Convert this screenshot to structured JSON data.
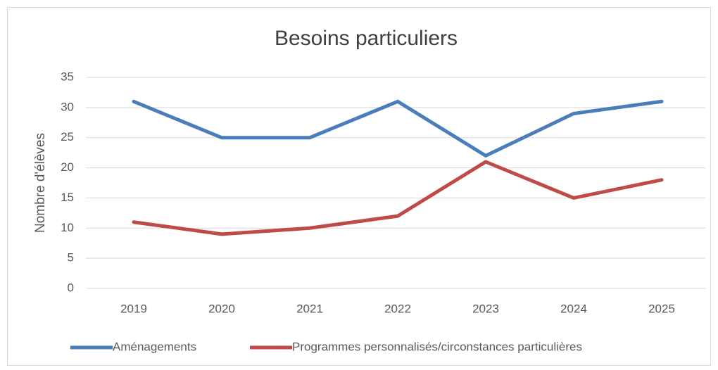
{
  "chart_data": {
    "type": "line",
    "title": "Besoins particuliers",
    "y_label": "Nombre d'élèves",
    "categories": [
      "2019",
      "2020",
      "2021",
      "2022",
      "2023",
      "2024",
      "2025"
    ],
    "series": [
      {
        "name": "Aménagements",
        "color": "#4a7ebb",
        "values": [
          31,
          25,
          25,
          31,
          22,
          29,
          31
        ]
      },
      {
        "name": "Programmes personnalisés/circonstances particulières",
        "color": "#be4b48",
        "values": [
          11,
          9,
          10,
          12,
          21,
          15,
          18
        ]
      }
    ],
    "ylim": [
      0,
      35
    ],
    "yticks": [
      0,
      5,
      10,
      15,
      20,
      25,
      30,
      35
    ],
    "grid": true,
    "legend": "bottom"
  }
}
